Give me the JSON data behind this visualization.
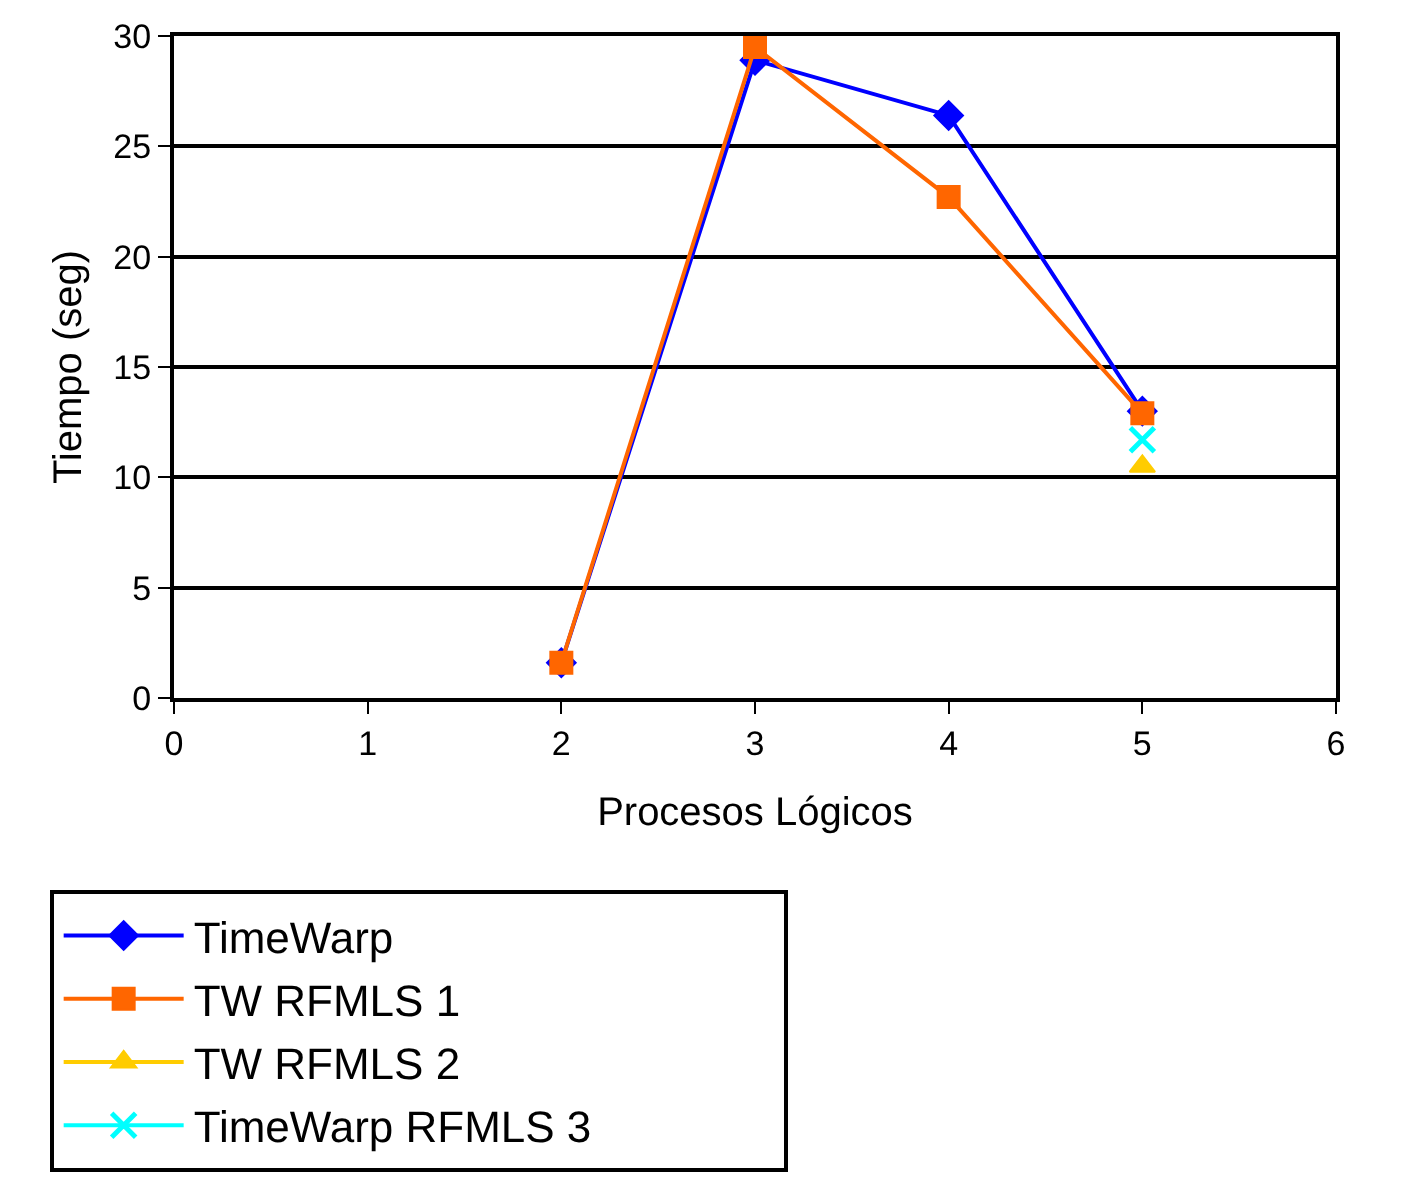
{
  "chart_data": {
    "type": "line",
    "xlabel": "Procesos Lógicos",
    "ylabel": "Tiempo (seg)",
    "x": [
      2,
      3,
      4,
      5
    ],
    "series": [
      {
        "name": "TimeWarp",
        "color": "#0000ff",
        "marker": "diamond",
        "values": [
          1.6,
          28.9,
          26.4,
          13.0
        ]
      },
      {
        "name": "TW RFMLS 1",
        "color": "#ff6600",
        "marker": "square",
        "values": [
          1.6,
          29.5,
          22.7,
          12.9
        ]
      },
      {
        "name": "TW RFMLS 2",
        "color": "#ffcc00",
        "marker": "triangle",
        "values": [
          null,
          null,
          null,
          10.5
        ]
      },
      {
        "name": "TimeWarp RFMLS 3",
        "color": "#00ffff",
        "marker": "cross",
        "values": [
          null,
          null,
          null,
          11.7
        ]
      }
    ],
    "xlim": [
      0,
      6
    ],
    "xticks": [
      0,
      1,
      2,
      3,
      4,
      5,
      6
    ],
    "ylim": [
      0,
      30
    ],
    "yticks": [
      0,
      5,
      10,
      15,
      20,
      25,
      30
    ],
    "grid": "y",
    "legend": "bottom"
  }
}
